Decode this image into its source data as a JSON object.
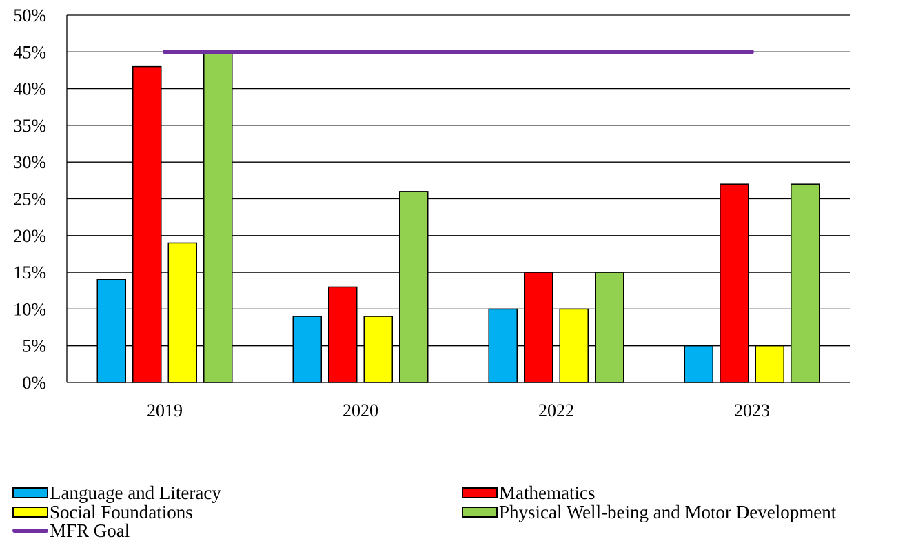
{
  "chart_data": {
    "type": "bar",
    "categories": [
      "2019",
      "2020",
      "2022",
      "2023"
    ],
    "series": [
      {
        "name": "Language and Literacy",
        "values": [
          14,
          9,
          10,
          5
        ],
        "color": "#00B0F0"
      },
      {
        "name": "Mathematics",
        "values": [
          43,
          13,
          15,
          27
        ],
        "color": "#FF0000"
      },
      {
        "name": "Social Foundations",
        "values": [
          19,
          9,
          10,
          5
        ],
        "color": "#FFFF00"
      },
      {
        "name": "Physical Well-being and Motor Development",
        "values": [
          45,
          26,
          15,
          27
        ],
        "color": "#92D050"
      }
    ],
    "goal_line": {
      "name": "MFR Goal",
      "value": 45,
      "color": "#7030A0"
    },
    "ylim": [
      0,
      50
    ],
    "yticks": [
      "0%",
      "5%",
      "10%",
      "15%",
      "20%",
      "25%",
      "30%",
      "35%",
      "40%",
      "45%",
      "50%"
    ],
    "ytick_values": [
      0,
      5,
      10,
      15,
      20,
      25,
      30,
      35,
      40,
      45,
      50
    ],
    "grid": true,
    "legend_position": "bottom"
  }
}
